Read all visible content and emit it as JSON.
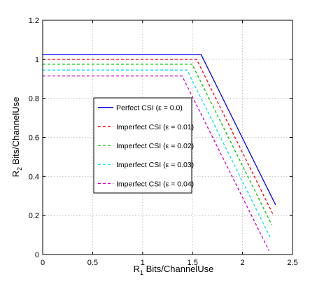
{
  "chart_data": {
    "type": "line",
    "title": "",
    "xlabel": "R_1 Bits/ChannelUse",
    "ylabel": "R_2 Bits/ChannelUse",
    "xlabel_parts": {
      "main": "R",
      "sub": "1",
      "rest": " Bits/ChannelUse"
    },
    "ylabel_parts": {
      "main": "R",
      "sub": "2",
      "rest": " Bits/ChannelUse"
    },
    "xlim": [
      0,
      2.5
    ],
    "ylim": [
      0,
      1.2
    ],
    "xticks": [
      0,
      0.5,
      1,
      1.5,
      2,
      2.5
    ],
    "xtick_labels": [
      "0",
      "0.5",
      "1",
      "1.5",
      "2",
      "2.5"
    ],
    "yticks": [
      0,
      0.2,
      0.4,
      0.6,
      0.8,
      1,
      1.2
    ],
    "ytick_labels": [
      "0",
      "0.2",
      "0.4",
      "0.6",
      "0.8",
      "1",
      "1.2"
    ],
    "grid": true,
    "legend_position": "center-left",
    "series": [
      {
        "name": "Perfect CSI (ε = 0.0)",
        "color": "#0000ff",
        "dash": "solid",
        "x": [
          0,
          1.585,
          2.33
        ],
        "y": [
          1.025,
          1.025,
          0.255
        ]
      },
      {
        "name": "Imperfect CSI (ε = 0.01)",
        "color": "#ff0000",
        "dash": "dashed",
        "x": [
          0,
          1.54,
          2.31
        ],
        "y": [
          1.0,
          1.0,
          0.2
        ]
      },
      {
        "name": "Imperfect CSI (ε = 0.02)",
        "color": "#00cc00",
        "dash": "dashed",
        "x": [
          0,
          1.495,
          2.295
        ],
        "y": [
          0.975,
          0.975,
          0.15
        ]
      },
      {
        "name": "Imperfect CSI (ε = 0.03)",
        "color": "#00e5e5",
        "dash": "dashed",
        "x": [
          0,
          1.445,
          2.28
        ],
        "y": [
          0.945,
          0.945,
          0.085
        ]
      },
      {
        "name": "Imperfect CSI (ε = 0.04)",
        "color": "#cc00cc",
        "dash": "dashed",
        "x": [
          0,
          1.395,
          2.265
        ],
        "y": [
          0.915,
          0.915,
          0.02
        ]
      }
    ]
  }
}
